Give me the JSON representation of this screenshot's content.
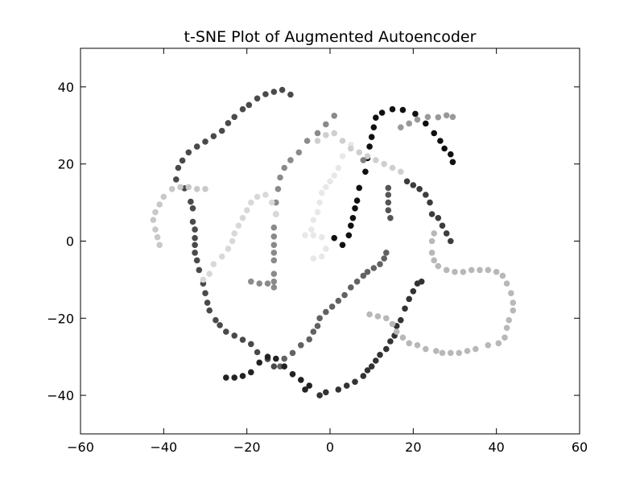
{
  "chart_data": {
    "type": "scatter",
    "title": "t-SNE Plot of Augmented Autoencoder",
    "xlabel": "",
    "ylabel": "",
    "xlim": [
      -60,
      60
    ],
    "ylim": [
      -50,
      50
    ],
    "xticks": [
      -60,
      -40,
      -20,
      0,
      20,
      40,
      60
    ],
    "yticks": [
      -40,
      -20,
      0,
      20,
      40
    ],
    "x_tick_labels": [
      "−60",
      "−40",
      "−20",
      "0",
      "20",
      "40",
      "60"
    ],
    "y_tick_labels": [
      "−40",
      "−20",
      "0",
      "20",
      "40"
    ],
    "grid": false,
    "legend": "none",
    "marker_color_encoding": "grayscale",
    "series": [
      {
        "color": "#4a4a4a",
        "points": [
          [
            -9.5,
            38
          ],
          [
            -11.5,
            39.2
          ],
          [
            -13.5,
            38.7
          ],
          [
            -15.5,
            38.1
          ],
          [
            -17.5,
            37
          ],
          [
            -19.5,
            35.3
          ],
          [
            -21,
            34.2
          ],
          [
            -23,
            32.2
          ],
          [
            -24.5,
            30.6
          ],
          [
            -26,
            28.6
          ],
          [
            -28,
            27.2
          ],
          [
            -30,
            25.8
          ],
          [
            -32,
            24.5
          ],
          [
            -34,
            23
          ],
          [
            -35.5,
            20.9
          ],
          [
            -36.5,
            19
          ],
          [
            -37,
            16
          ],
          [
            -35,
            13.7
          ],
          [
            -33.5,
            10.2
          ],
          [
            -33,
            8.5
          ],
          [
            -33,
            5
          ],
          [
            -32.5,
            3
          ],
          [
            -32.5,
            0.8
          ],
          [
            -32.5,
            -1
          ],
          [
            -32.5,
            -3
          ],
          [
            -32,
            -5
          ],
          [
            -31.5,
            -7.5
          ],
          [
            -30.5,
            -11
          ],
          [
            -30,
            -13.5
          ],
          [
            -29.5,
            -16
          ],
          [
            -29,
            -18
          ],
          [
            -27.5,
            -20.5
          ],
          [
            -26.5,
            -21.8
          ],
          [
            -25,
            -23.5
          ],
          [
            -23,
            -24.5
          ],
          [
            -21,
            -25.6
          ],
          [
            -19,
            -26.7
          ],
          [
            -17.5,
            -28.8
          ],
          [
            -15,
            -30.6
          ],
          [
            -13.5,
            -32.5
          ]
        ]
      },
      {
        "color": "#626262",
        "points": [
          [
            -12,
            -32.5
          ],
          [
            -11,
            -30.5
          ],
          [
            -9,
            -29
          ],
          [
            -7,
            -27
          ],
          [
            -5,
            -25.5
          ],
          [
            -4,
            -23.5
          ],
          [
            -3,
            -22
          ],
          [
            -2.5,
            -20
          ],
          [
            -1,
            -18.4
          ],
          [
            0.5,
            -17
          ],
          [
            2,
            -15.5
          ],
          [
            3.5,
            -14
          ],
          [
            5,
            -12
          ],
          [
            6.5,
            -10.5
          ],
          [
            8,
            -9
          ],
          [
            9,
            -8
          ],
          [
            10.5,
            -7
          ],
          [
            12,
            -6
          ],
          [
            13,
            -4.5
          ],
          [
            13.5,
            -3
          ]
        ]
      },
      {
        "color": "#8a8a8a",
        "points": [
          [
            1,
            32.5
          ],
          [
            -1,
            30.3
          ],
          [
            -3,
            28
          ],
          [
            -5.5,
            26
          ],
          [
            -7.5,
            23
          ],
          [
            -9.5,
            21
          ],
          [
            -11,
            19
          ],
          [
            -12,
            16.5
          ],
          [
            -12.5,
            13.5
          ],
          [
            -13,
            10
          ],
          [
            -13,
            7
          ],
          [
            -13.5,
            3.5
          ],
          [
            -13.5,
            1.2
          ],
          [
            -13.5,
            -1
          ],
          [
            -13.5,
            -3
          ],
          [
            -13.5,
            -5
          ],
          [
            -13.5,
            -8.5
          ],
          [
            -13.5,
            -10.5
          ],
          [
            -13.5,
            -12
          ],
          [
            -15,
            -11
          ],
          [
            -17,
            -11
          ],
          [
            -19,
            -10.5
          ]
        ]
      },
      {
        "color": "#101010",
        "points": [
          [
            29.5,
            20.5
          ],
          [
            29,
            22.5
          ],
          [
            27.5,
            24
          ],
          [
            26.5,
            26
          ],
          [
            25,
            28
          ],
          [
            23,
            30.5
          ],
          [
            20.5,
            33
          ],
          [
            17.5,
            34
          ],
          [
            15,
            34.2
          ],
          [
            12.5,
            33.3
          ],
          [
            11,
            32
          ],
          [
            10.5,
            29.5
          ],
          [
            10,
            27
          ],
          [
            9.5,
            24.5
          ],
          [
            9,
            21.5
          ],
          [
            8.5,
            18
          ],
          [
            7,
            13.8
          ],
          [
            6.5,
            10.5
          ],
          [
            6,
            8.5
          ],
          [
            5.5,
            6
          ],
          [
            5,
            4
          ],
          [
            4.5,
            1.5
          ],
          [
            3,
            -1
          ],
          [
            1,
            0.8
          ]
        ]
      },
      {
        "color": "#333333",
        "points": [
          [
            -2.5,
            -40
          ],
          [
            -1,
            -39.2
          ],
          [
            2,
            -38.5
          ],
          [
            4,
            -37.5
          ],
          [
            6,
            -36.5
          ],
          [
            8,
            -35
          ],
          [
            9,
            -33.5
          ],
          [
            10,
            -32.5
          ],
          [
            11,
            -31
          ],
          [
            12,
            -29.5
          ],
          [
            13.5,
            -28
          ],
          [
            14.5,
            -26
          ],
          [
            15.5,
            -24.5
          ],
          [
            16,
            -22
          ],
          [
            17,
            -20.5
          ],
          [
            18,
            -17.5
          ],
          [
            19,
            -15
          ],
          [
            20,
            -13
          ],
          [
            21,
            -11
          ],
          [
            22,
            -10.5
          ]
        ]
      },
      {
        "color": "#222222",
        "points": [
          [
            -6,
            -38.5
          ],
          [
            -5,
            -37.5
          ],
          [
            -7,
            -36
          ],
          [
            -9,
            -34.5
          ],
          [
            -11,
            -32.5
          ],
          [
            -13,
            -30.5
          ],
          [
            -15,
            -30
          ],
          [
            -17,
            -31.5
          ],
          [
            -19,
            -34
          ],
          [
            -21,
            -35
          ],
          [
            -23,
            -35.4
          ],
          [
            -25,
            -35.4
          ]
        ]
      },
      {
        "color": "#3c3c3c",
        "points": [
          [
            18.5,
            15.5
          ],
          [
            20,
            14.5
          ],
          [
            21.5,
            13.5
          ],
          [
            23,
            12
          ],
          [
            24,
            10
          ],
          [
            24.5,
            7
          ],
          [
            26,
            6
          ],
          [
            27,
            4
          ],
          [
            28,
            2
          ],
          [
            29,
            0
          ]
        ]
      },
      {
        "color": "#999999",
        "points": [
          [
            17,
            29.5
          ],
          [
            19,
            30.5
          ],
          [
            21,
            31.5
          ],
          [
            23.5,
            32.2
          ],
          [
            26,
            32.1
          ],
          [
            28,
            32.6
          ],
          [
            29.5,
            32.2
          ]
        ]
      },
      {
        "color": "#b8b8b8",
        "points": [
          [
            25,
            2
          ],
          [
            24.5,
            0
          ],
          [
            24.5,
            -3
          ],
          [
            25,
            -5
          ],
          [
            26,
            -6.5
          ],
          [
            28,
            -7.5
          ],
          [
            30,
            -8
          ],
          [
            32,
            -8
          ],
          [
            34,
            -7.5
          ],
          [
            36,
            -7.5
          ],
          [
            38,
            -7.5
          ],
          [
            40,
            -8
          ],
          [
            41.5,
            -9
          ],
          [
            42.5,
            -11
          ],
          [
            43.5,
            -13.5
          ],
          [
            44,
            -16
          ],
          [
            44,
            -18
          ],
          [
            43,
            -20.5
          ],
          [
            42.5,
            -22.5
          ],
          [
            42,
            -25
          ],
          [
            40.5,
            -26.5
          ],
          [
            38,
            -27
          ],
          [
            35,
            -28
          ],
          [
            33,
            -28.5
          ],
          [
            31,
            -29
          ],
          [
            29,
            -29
          ],
          [
            27,
            -29
          ],
          [
            25.5,
            -28.5
          ],
          [
            23,
            -28
          ],
          [
            21,
            -27
          ],
          [
            19,
            -26.5
          ],
          [
            17.5,
            -25
          ],
          [
            16,
            -23.5
          ],
          [
            15,
            -21.5
          ],
          [
            13.5,
            -20
          ],
          [
            11.5,
            -19.5
          ],
          [
            9.5,
            -19
          ]
        ]
      },
      {
        "color": "#c8c8c8",
        "points": [
          [
            -41,
            -1
          ],
          [
            -41.5,
            1
          ],
          [
            -42,
            3
          ],
          [
            -42.5,
            5.5
          ],
          [
            -42,
            7.5
          ],
          [
            -41,
            9.5
          ],
          [
            -40,
            11.5
          ],
          [
            -38,
            13.5
          ],
          [
            -36,
            14
          ],
          [
            -34,
            14
          ],
          [
            -32,
            13.5
          ],
          [
            -30,
            13.5
          ]
        ]
      },
      {
        "color": "#d8d8d8",
        "points": [
          [
            -30.5,
            -10
          ],
          [
            -29,
            -8.5
          ],
          [
            -28,
            -6
          ],
          [
            -26,
            -4
          ],
          [
            -24.5,
            -2
          ],
          [
            -23.5,
            0
          ],
          [
            -23,
            2
          ],
          [
            -22,
            4
          ],
          [
            -21,
            6
          ],
          [
            -20,
            8
          ],
          [
            -19,
            10
          ],
          [
            -17.5,
            11.5
          ],
          [
            -15.5,
            12
          ],
          [
            -14,
            10
          ],
          [
            -13,
            7
          ]
        ]
      },
      {
        "color": "#e8e8e8",
        "points": [
          [
            -6,
            1.5
          ],
          [
            -4,
            1.5
          ],
          [
            -2,
            1
          ],
          [
            -1,
            -2
          ],
          [
            -2,
            -4
          ],
          [
            -4,
            -4.5
          ],
          [
            -4.5,
            3
          ],
          [
            -4,
            5.5
          ],
          [
            -3,
            7.5
          ],
          [
            -2.5,
            10
          ],
          [
            -2,
            12.5
          ],
          [
            -1,
            14
          ],
          [
            0,
            15.5
          ],
          [
            1,
            17
          ],
          [
            2,
            19
          ],
          [
            3,
            22
          ],
          [
            5,
            25
          ]
        ]
      },
      {
        "color": "#cfcfcf",
        "points": [
          [
            -3,
            26
          ],
          [
            -1,
            27.5
          ],
          [
            1,
            28
          ],
          [
            3,
            26
          ],
          [
            5,
            24
          ],
          [
            7,
            23
          ],
          [
            9,
            22
          ],
          [
            11,
            21
          ],
          [
            13,
            20
          ],
          [
            15,
            19
          ],
          [
            17,
            18
          ]
        ]
      },
      {
        "color": "#555555",
        "points": [
          [
            14,
            13.8
          ],
          [
            14,
            12
          ],
          [
            14,
            10
          ],
          [
            14,
            8
          ],
          [
            14.5,
            6
          ]
        ]
      },
      {
        "color": "#808080",
        "points": [
          [
            8,
            21
          ]
        ]
      }
    ]
  }
}
